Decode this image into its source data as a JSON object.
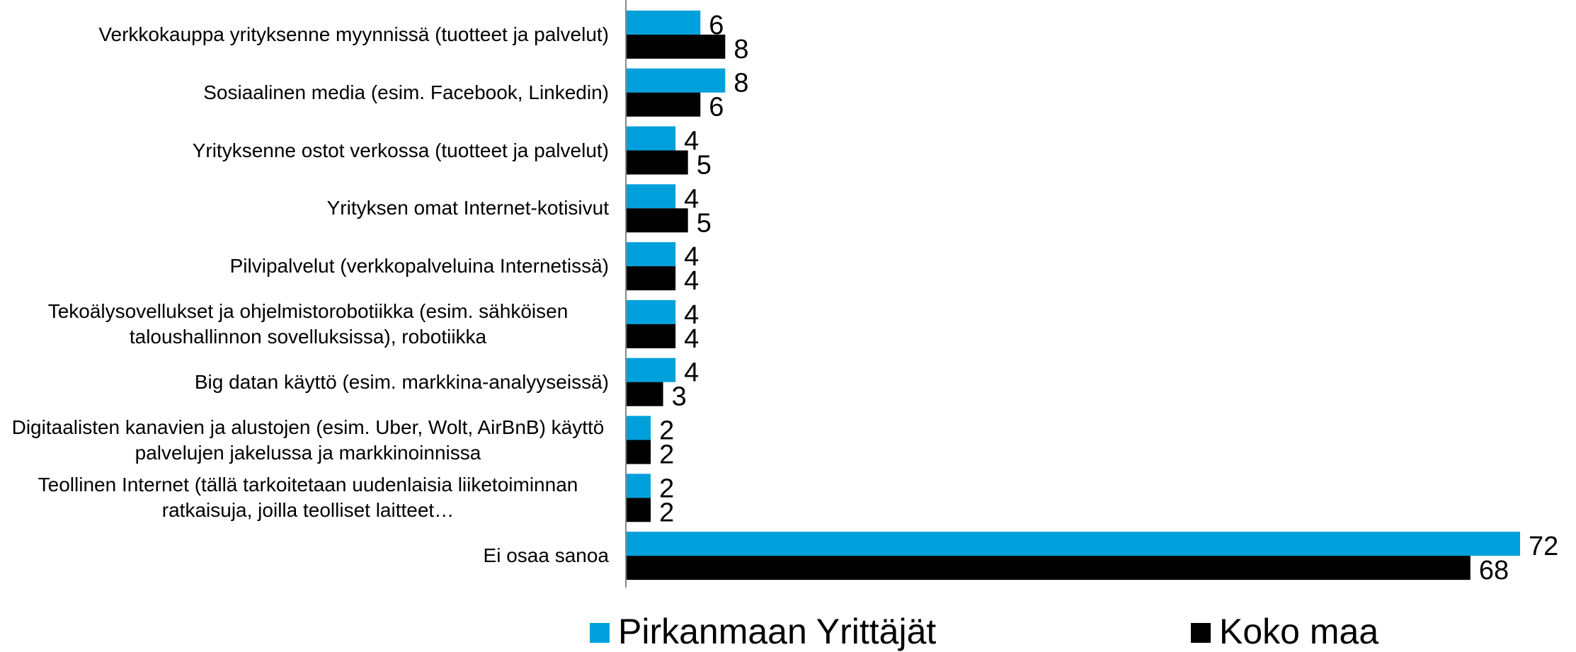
{
  "chart_data": {
    "type": "bar",
    "orientation": "horizontal",
    "categories": [
      "Verkkokauppa yrityksenne myynnissä (tuotteet ja palvelut)",
      "Sosiaalinen media (esim. Facebook, Linkedin)",
      "Yrityksenne ostot verkossa (tuotteet ja palvelut)",
      "Yrityksen omat Internet-kotisivut",
      "Pilvipalvelut  (verkkopalveluina Internetissä)",
      "Tekoälysovellukset ja ohjelmistorobotiikka (esim. sähköisen taloushallinnon sovelluksissa), robotiikka",
      "Big datan käyttö (esim. markkina-analyyseissä)",
      "Digitaalisten kanavien ja alustojen (esim. Uber, Wolt, AirBnB) käyttö palvelujen jakelussa ja markkinoinnissa",
      "Teollinen Internet (tällä tarkoitetaan uudenlaisia liiketoiminnan ratkaisuja, joilla teolliset laitteet…",
      "Ei osaa sanoa"
    ],
    "series": [
      {
        "name": "Pirkanmaan Yrittäjät",
        "color": "#00a0dc",
        "values": [
          6,
          8,
          4,
          4,
          4,
          4,
          4,
          2,
          2,
          72
        ]
      },
      {
        "name": "Koko maa",
        "color": "#000000",
        "values": [
          8,
          6,
          5,
          5,
          4,
          4,
          3,
          2,
          2,
          68
        ]
      }
    ],
    "legend": "bottom"
  }
}
